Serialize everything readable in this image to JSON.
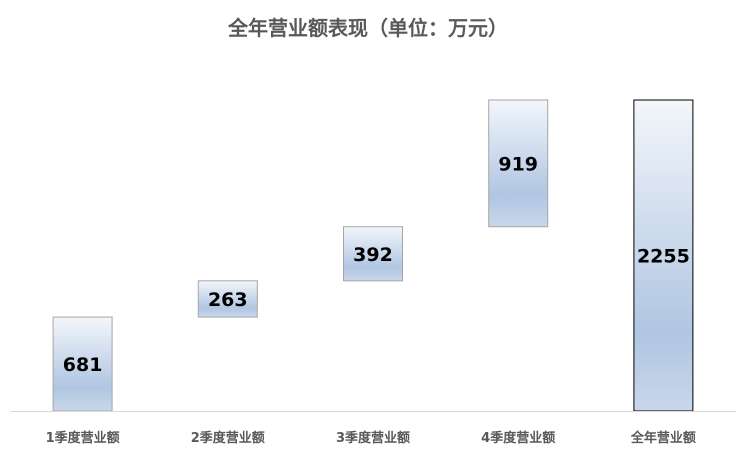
{
  "chart_data": {
    "type": "waterfall",
    "title": "全年营业额表现（单位：万元）",
    "categories": [
      "1季度营业额",
      "2季度营业额",
      "3季度营业额",
      "4季度营业额",
      "全年营业额"
    ],
    "values": [
      681,
      263,
      392,
      919,
      2255
    ],
    "is_total": [
      false,
      false,
      false,
      false,
      true
    ],
    "ylim": [
      0,
      2255
    ],
    "grid": false,
    "legend": "none",
    "colors": {
      "bar_top": "#f3f6fb",
      "bar_mid": "#b0c6e2",
      "bar_bottom": "#c9d7ea",
      "bar_border": "#a6a6a6",
      "total_border": "#000000",
      "axis": "#d9d9d9"
    }
  }
}
